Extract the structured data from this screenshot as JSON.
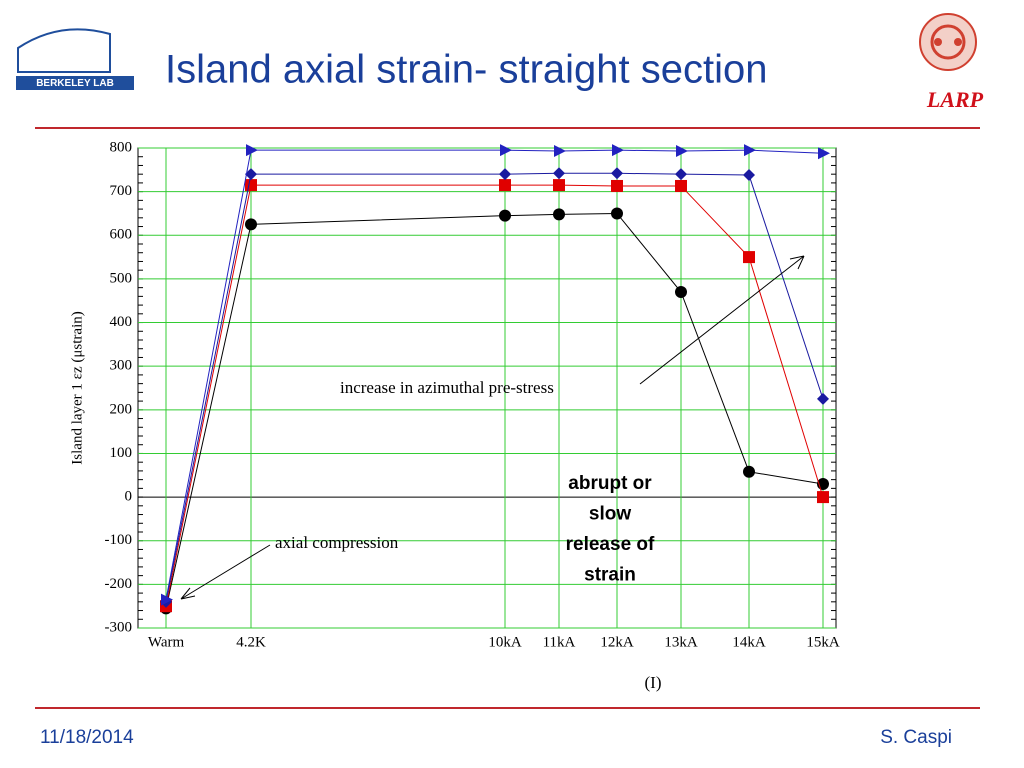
{
  "header": {
    "title": "Island axial strain- straight section",
    "logo_left": "BERKELEY LAB",
    "logo_right": "LARP"
  },
  "chart_data": {
    "type": "line",
    "y_label": "Island layer 1 εz (μstrain)",
    "x_label": "(I)",
    "categories": [
      "Warm",
      "4.2K",
      "10kA",
      "11kA",
      "12kA",
      "13kA",
      "14kA",
      "15kA"
    ],
    "series": [
      {
        "color": "#000000",
        "marker": "circle",
        "values": [
          -255,
          625,
          645,
          648,
          650,
          470,
          58,
          30
        ]
      },
      {
        "color": "#e00000",
        "marker": "square",
        "values": [
          -250,
          715,
          715,
          715,
          713,
          713,
          550,
          0
        ]
      },
      {
        "color": "#1a1aa0",
        "marker": "diamond",
        "values": [
          -240,
          740,
          740,
          742,
          742,
          740,
          738,
          225
        ]
      },
      {
        "color": "#2222c0",
        "marker": "triangle-right",
        "values": [
          -235,
          795,
          795,
          793,
          795,
          793,
          795,
          788
        ]
      }
    ],
    "ylim": [
      -300,
      800
    ],
    "yticks": [
      -300,
      -200,
      -100,
      0,
      100,
      200,
      300,
      400,
      500,
      600,
      700,
      800
    ],
    "grid": true,
    "annotations": [
      "increase in azimuthal pre-stress",
      "axial compression"
    ],
    "callout": [
      "abrupt  or",
      "slow",
      "release of",
      "strain"
    ]
  },
  "footer": {
    "date": "11/18/2014",
    "author": "S. Caspi"
  }
}
